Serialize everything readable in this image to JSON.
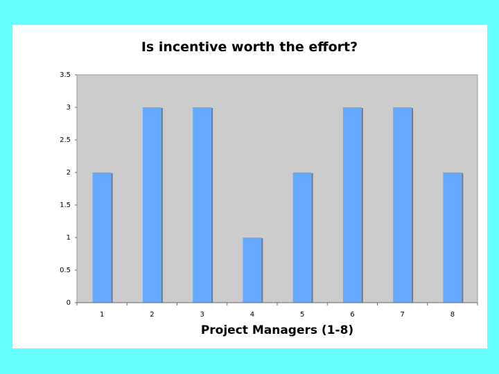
{
  "colors": {
    "page_background": "#66ffff",
    "panel_background": "#ffffff",
    "plot_background": "#cccccc",
    "bar_fill": "#66aaff",
    "bar_shadow": "#7a7a7a"
  },
  "chart_data": {
    "type": "bar",
    "title": "Is incentive worth the effort?",
    "xlabel": "Project Managers (1-8)",
    "ylabel": "",
    "categories": [
      "1",
      "2",
      "3",
      "4",
      "5",
      "6",
      "7",
      "8"
    ],
    "values": [
      2,
      3,
      3,
      1,
      2,
      3,
      3,
      2
    ],
    "ylim": [
      0,
      3.5
    ],
    "yticks": [
      "0",
      "0.5",
      "1",
      "1.5",
      "2",
      "2.5",
      "3",
      "3.5"
    ],
    "grid": false,
    "legend": "none"
  }
}
